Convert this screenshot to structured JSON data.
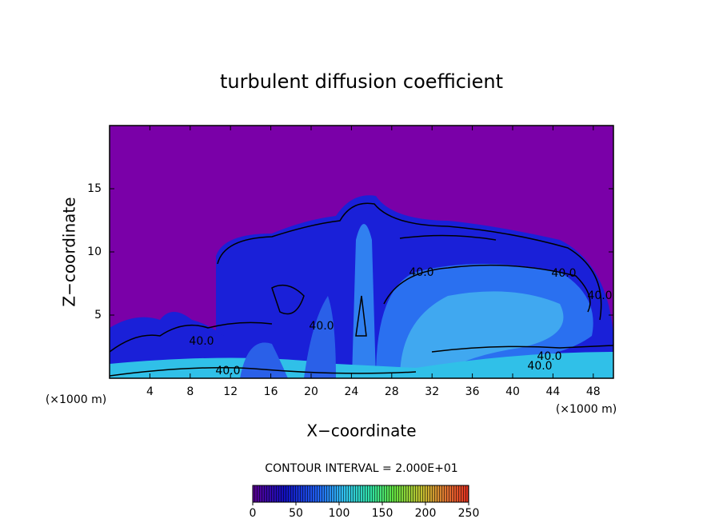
{
  "chart_data": {
    "type": "contour",
    "title": "turbulent diffusion coefficient",
    "x_label": "X−coordinate",
    "y_label": "Z−coordinate",
    "x_unit_left": "(×1000 m)",
    "x_unit_right": "(×1000 m)",
    "xlim": [
      0,
      50
    ],
    "xticks": [
      4,
      8,
      12,
      16,
      20,
      24,
      28,
      32,
      36,
      40,
      44,
      48
    ],
    "ylim": [
      0,
      20
    ],
    "yticks": [
      5,
      10,
      15
    ],
    "contour_labels": [
      "40.0",
      "40.0",
      "40.0",
      "40.0",
      "40.0",
      "40.0",
      "40.0",
      "40.0"
    ],
    "colorbar": {
      "title": "CONTOUR INTERVAL = 2.000E+01",
      "lim": [
        0,
        250
      ],
      "ticks": [
        0,
        50,
        100,
        150,
        200,
        250
      ]
    }
  }
}
